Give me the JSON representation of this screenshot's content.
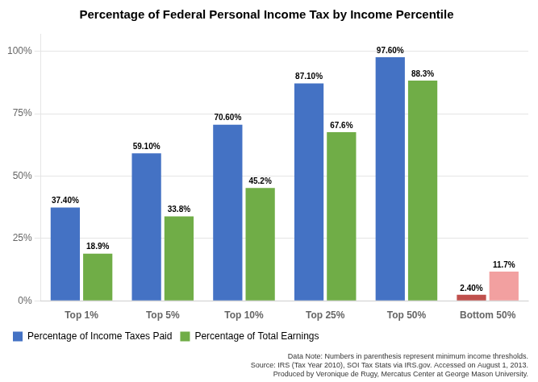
{
  "chart_data": {
    "type": "bar",
    "title": "Percentage of Federal Personal Income Tax by Income Percentile",
    "categories": [
      "Top 1%",
      "Top 5%",
      "Top 10%",
      "Top 25%",
      "Top 50%",
      "Bottom 50%"
    ],
    "series": [
      {
        "name": "Percentage of Income Taxes Paid",
        "color": "#4472C4",
        "colors": [
          "#4472C4",
          "#4472C4",
          "#4472C4",
          "#4472C4",
          "#4472C4",
          "#C0504D"
        ],
        "values": [
          37.4,
          59.1,
          70.6,
          87.1,
          97.6,
          2.4
        ],
        "value_labels": [
          "37.40%",
          "59.10%",
          "70.60%",
          "87.10%",
          "97.60%",
          "2.40%"
        ]
      },
      {
        "name": "Percentage of Total Earnings",
        "color": "#70AD47",
        "colors": [
          "#70AD47",
          "#70AD47",
          "#70AD47",
          "#70AD47",
          "#70AD47",
          "#F2A0A0"
        ],
        "values": [
          18.9,
          33.8,
          45.2,
          67.6,
          88.3,
          11.7
        ],
        "value_labels": [
          "18.9%",
          "33.8%",
          "45.2%",
          "67.6%",
          "88.3%",
          "11.7%"
        ]
      }
    ],
    "ylim": [
      0,
      107
    ],
    "yticks": [
      {
        "value": 0,
        "label": "0%"
      },
      {
        "value": 25,
        "label": "25%"
      },
      {
        "value": 50,
        "label": "50%"
      },
      {
        "value": 75,
        "label": "75%"
      },
      {
        "value": 100,
        "label": "100%"
      }
    ],
    "grid": true,
    "legend": "bottom",
    "data_labels": true,
    "annotations": [
      "Data Note: Numbers in parenthesis represent minimum income thresholds.",
      "Source: IRS (Tax Year 2010), SOI Tax Stats via IRS.gov. Accessed on August 1, 2013.",
      "Produced by Veronique de Rugy, Mercatus Center at George Mason University."
    ]
  }
}
